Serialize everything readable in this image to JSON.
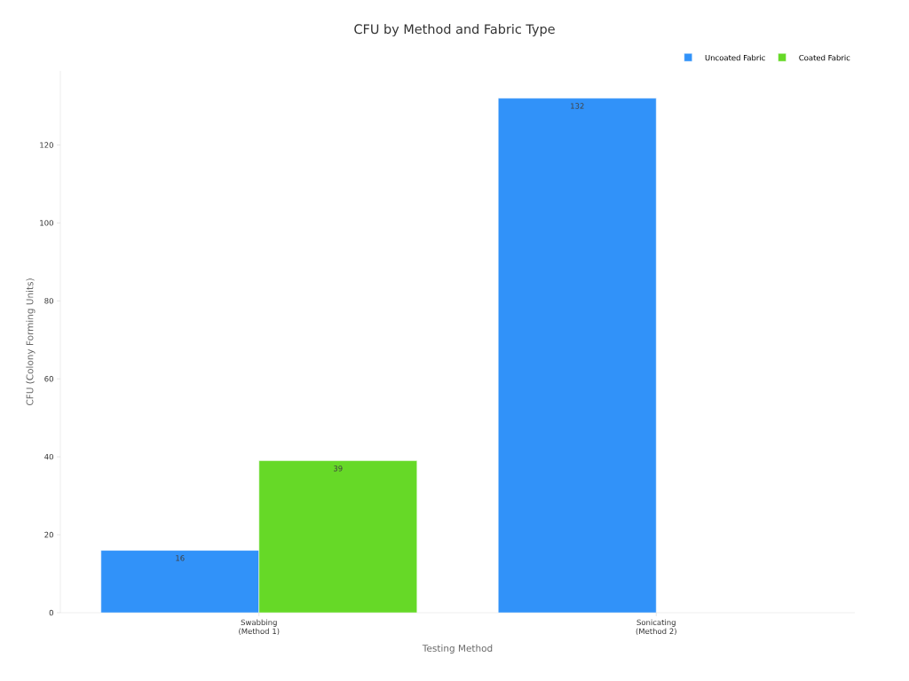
{
  "chart_data": {
    "type": "bar",
    "title": "CFU by Method and Fabric Type",
    "xlabel": "Testing Method",
    "ylabel": "CFU (Colony Forming Units)",
    "categories": [
      "Swabbing (Method 1)",
      "Sonicating (Method 2)"
    ],
    "series": [
      {
        "name": "Uncoated Fabric",
        "color": "#3192f9",
        "values": [
          16,
          132
        ]
      },
      {
        "name": "Coated Fabric",
        "color": "#66d927",
        "values": [
          39,
          null
        ]
      }
    ],
    "ylim": [
      0,
      139
    ],
    "yticks": [
      0,
      20,
      40,
      60,
      80,
      100,
      120
    ],
    "grid": false,
    "legend": "top right",
    "data_labels": true
  }
}
